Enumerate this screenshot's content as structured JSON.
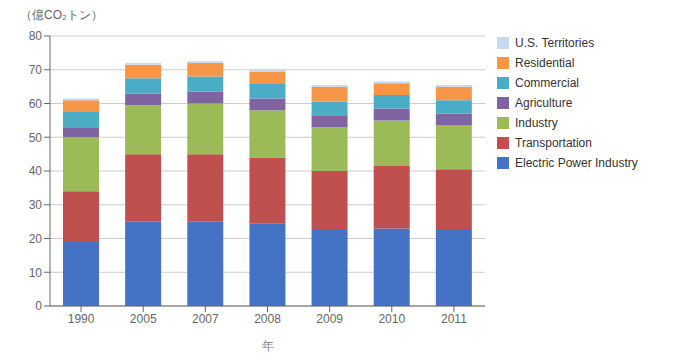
{
  "chart_data": {
    "type": "bar",
    "stacked": true,
    "xlabel": "年",
    "ylabel": "（億CO₂トン）",
    "categories": [
      "1990",
      "2005",
      "2007",
      "2008",
      "2009",
      "2010",
      "2011"
    ],
    "series": [
      {
        "name": "Electric Power Industry",
        "color": "#4472C4",
        "values": [
          19.0,
          25.0,
          25.0,
          24.5,
          22.5,
          23.0,
          22.5
        ]
      },
      {
        "name": "Transportation",
        "color": "#C0504D",
        "values": [
          15.0,
          20.0,
          20.0,
          19.5,
          17.5,
          18.5,
          18.0
        ]
      },
      {
        "name": "Industry",
        "color": "#9BBB59",
        "values": [
          16.0,
          14.5,
          15.0,
          14.0,
          13.0,
          13.5,
          13.0
        ]
      },
      {
        "name": "Agriculture",
        "color": "#8064A2",
        "values": [
          3.0,
          3.5,
          3.5,
          3.5,
          3.5,
          3.5,
          3.5
        ]
      },
      {
        "name": "Commercial",
        "color": "#4BACC6",
        "values": [
          4.5,
          4.5,
          4.5,
          4.5,
          4.0,
          4.0,
          4.0
        ]
      },
      {
        "name": "Residential",
        "color": "#F79646",
        "values": [
          3.5,
          4.0,
          4.0,
          3.5,
          4.5,
          3.5,
          4.0
        ]
      },
      {
        "name": "U.S. Territories",
        "color": "#C5D9F1",
        "values": [
          0.5,
          0.5,
          0.5,
          0.5,
          0.5,
          0.5,
          0.5
        ]
      }
    ],
    "ylim": [
      0,
      80
    ],
    "yticks": [
      0,
      10,
      20,
      30,
      40,
      50,
      60,
      70,
      80
    ],
    "grid": true,
    "legend": "right"
  }
}
